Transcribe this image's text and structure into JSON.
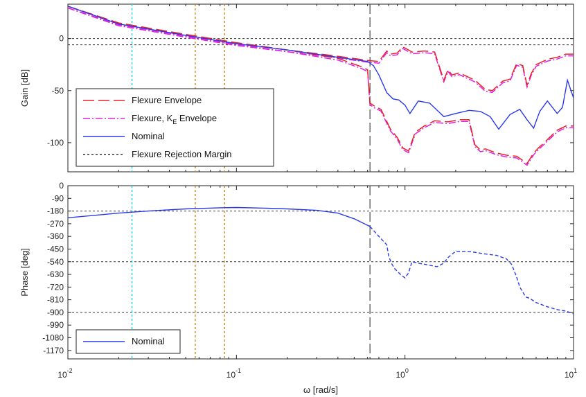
{
  "colors": {
    "flexure_envelope": "#e8202a",
    "flexure_ke_envelope": "#e020e0",
    "nominal": "#2a3ae8",
    "rejection_margin": "#333333",
    "cyan_marker": "#00d0e0",
    "orange_marker": "#c8800a",
    "crossover_marker": "#555555"
  },
  "xaxis": {
    "label": "ω [rad/s]",
    "scale": "log",
    "range": [
      0.01,
      10
    ],
    "tick_labels": [
      {
        "base": "10",
        "exp": "-2"
      },
      {
        "base": "10",
        "exp": "-1"
      },
      {
        "base": "10",
        "exp": "0"
      },
      {
        "base": "10",
        "exp": "1"
      }
    ]
  },
  "markers": {
    "cyan": 0.024,
    "orange": [
      0.057,
      0.085
    ],
    "crossover": 0.62
  },
  "chart_data": [
    {
      "type": "line",
      "panel": "gain",
      "ylabel": "Gain [dB]",
      "ylim": [
        -128,
        33
      ],
      "yticks": [
        "0",
        "-50",
        "-100"
      ],
      "yticks_values": [
        0,
        -50,
        -100
      ],
      "xscale": "log",
      "rejection_margin_levels": [
        0,
        -6
      ],
      "legend": {
        "placement": "lower-left",
        "entries": [
          "Flexure Envelope",
          "Flexure, K",
          "Nominal",
          "Flexure Rejection Margin"
        ],
        "entry2_subscript": "E",
        "entry2_suffix": " Envelope"
      },
      "series": [
        {
          "name": "Flexure Envelope (upper)",
          "x": [
            0.01,
            0.02,
            0.05,
            0.1,
            0.2,
            0.4,
            0.6,
            0.7,
            0.78,
            0.82,
            0.9,
            0.97,
            1.05,
            1.1,
            1.3,
            1.5,
            1.7,
            1.8,
            1.9,
            2.1,
            2.3,
            2.6,
            3.0,
            3.3,
            3.8,
            4.2,
            4.6,
            5.0,
            5.3,
            5.6,
            6.0,
            7.0,
            8.0,
            9.0,
            10.0
          ],
          "y": [
            31,
            14,
            3,
            -5,
            -11,
            -17,
            -21,
            -22,
            -12,
            -15,
            -14,
            -8,
            -11,
            -13,
            -12,
            -13,
            -40,
            -30,
            -35,
            -33,
            -36,
            -40,
            -49,
            -50,
            -41,
            -39,
            -24,
            -26,
            -45,
            -34,
            -25,
            -20,
            -18,
            -15,
            -15
          ]
        },
        {
          "name": "Flexure Envelope (lower)",
          "x": [
            0.01,
            0.02,
            0.05,
            0.1,
            0.2,
            0.4,
            0.55,
            0.6,
            0.62,
            0.66,
            0.72,
            0.82,
            0.9,
            0.97,
            1.05,
            1.15,
            1.3,
            1.5,
            1.8,
            2.1,
            2.4,
            2.6,
            2.8,
            3.0,
            3.5,
            4.0,
            4.6,
            5.0,
            5.3,
            5.8,
            6.2,
            7.0,
            8.0,
            9.0,
            10.0
          ],
          "y": [
            31,
            15,
            4,
            -4,
            -11,
            -19,
            -27,
            -30,
            -62,
            -65,
            -68,
            -87,
            -95,
            -105,
            -108,
            -90,
            -84,
            -79,
            -80,
            -78,
            -78,
            -102,
            -107,
            -106,
            -110,
            -112,
            -113,
            -117,
            -120,
            -110,
            -105,
            -97,
            -88,
            -84,
            -84
          ]
        },
        {
          "name": "Nominal",
          "x": [
            0.01,
            0.02,
            0.05,
            0.1,
            0.2,
            0.4,
            0.6,
            0.65,
            0.7,
            0.78,
            0.85,
            0.92,
            1.0,
            1.07,
            1.2,
            1.4,
            1.7,
            2.0,
            2.4,
            2.8,
            3.2,
            3.6,
            4.2,
            4.8,
            5.3,
            5.8,
            6.3,
            7.0,
            8.0,
            8.6,
            9.2,
            10.0
          ],
          "y": [
            31,
            14,
            3,
            -5,
            -11,
            -18,
            -22,
            -26,
            -35,
            -52,
            -58,
            -59,
            -64,
            -72,
            -60,
            -62,
            -75,
            -72,
            -69,
            -70,
            -75,
            -87,
            -73,
            -68,
            -78,
            -86,
            -70,
            -60,
            -72,
            -66,
            -40,
            -57
          ]
        }
      ]
    },
    {
      "type": "line",
      "panel": "phase",
      "ylabel": "Phase [deg]",
      "ylim": [
        -1230,
        0
      ],
      "yticks": [
        "0",
        "-90",
        "-180",
        "-270",
        "-360",
        "-450",
        "-540",
        "-630",
        "-720",
        "-810",
        "-900",
        "-990",
        "-1080",
        "-1170"
      ],
      "yticks_values": [
        0,
        -90,
        -180,
        -270,
        -360,
        -450,
        -540,
        -630,
        -720,
        -810,
        -900,
        -990,
        -1080,
        -1170
      ],
      "xscale": "log",
      "rejection_margin_levels": [
        -180,
        -540,
        -900
      ],
      "legend": {
        "placement": "lower-left",
        "entries": [
          "Nominal"
        ]
      },
      "series": [
        {
          "name": "Nominal",
          "x": [
            0.01,
            0.02,
            0.03,
            0.05,
            0.08,
            0.1,
            0.15,
            0.2,
            0.3,
            0.4,
            0.5,
            0.62
          ],
          "y": [
            -228,
            -195,
            -180,
            -165,
            -157,
            -155,
            -160,
            -165,
            -175,
            -195,
            -235,
            -290
          ]
        },
        {
          "name": "Nominal (beyond crossover)",
          "x": [
            0.62,
            0.7,
            0.78,
            0.8,
            0.83,
            0.87,
            0.95,
            1.0,
            1.05,
            1.1,
            1.2,
            1.4,
            1.55,
            1.7,
            1.8,
            2.0,
            2.5,
            3.0,
            3.5,
            4.0,
            4.3,
            4.6,
            4.8,
            5.2,
            5.5,
            6.0,
            7.0,
            8.0,
            9.0,
            10.0
          ],
          "y": [
            -290,
            -360,
            -420,
            -500,
            -550,
            -590,
            -635,
            -655,
            -620,
            -540,
            -550,
            -565,
            -575,
            -550,
            -510,
            -465,
            -470,
            -485,
            -495,
            -520,
            -560,
            -650,
            -720,
            -790,
            -800,
            -830,
            -860,
            -880,
            -890,
            -910
          ]
        }
      ]
    }
  ]
}
